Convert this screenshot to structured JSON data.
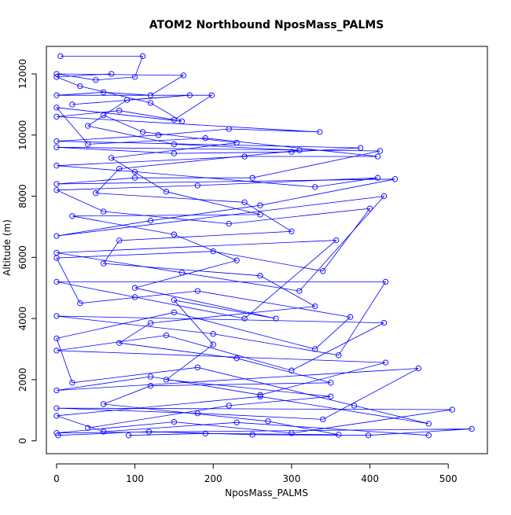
{
  "chart_data": {
    "type": "line",
    "title": "ATOM2 Northbound NposMass_PALMS",
    "xlabel": "NposMass_PALMS",
    "ylabel": "Altitude (m)",
    "xlim": [
      -13,
      550
    ],
    "ylim": [
      -420,
      12900
    ],
    "xticks": [
      0,
      100,
      200,
      300,
      400,
      500
    ],
    "yticks": [
      0,
      2000,
      4000,
      6000,
      8000,
      10000,
      12000
    ],
    "grid": false,
    "legend": "none",
    "markers": "open-circle",
    "colors": {
      "series": "#0000ff",
      "axes": "#000000",
      "background": "#ffffff"
    },
    "series": [
      {
        "values": [
          [
            2,
            180
          ],
          [
            118,
            300
          ],
          [
            250,
            200
          ],
          [
            398,
            180
          ],
          [
            530,
            390
          ],
          [
            0,
            260
          ],
          [
            150,
            620
          ],
          [
            300,
            250
          ],
          [
            505,
            1020
          ],
          [
            0,
            1070
          ],
          [
            180,
            900
          ],
          [
            340,
            700
          ],
          [
            462,
            2370
          ],
          [
            0,
            1650
          ],
          [
            120,
            2100
          ],
          [
            260,
            1500
          ],
          [
            420,
            2560
          ],
          [
            0,
            2950
          ],
          [
            140,
            3450
          ],
          [
            300,
            2300
          ],
          [
            418,
            3860
          ],
          [
            0,
            4080
          ],
          [
            200,
            3500
          ],
          [
            360,
            2800
          ],
          [
            420,
            5200
          ],
          [
            0,
            5200
          ],
          [
            100,
            4700
          ],
          [
            240,
            4000
          ],
          [
            357,
            6560
          ],
          [
            0,
            6150
          ],
          [
            160,
            5500
          ],
          [
            310,
            4900
          ],
          [
            418,
            8000
          ],
          [
            0,
            6700
          ],
          [
            120,
            7200
          ],
          [
            260,
            7700
          ],
          [
            432,
            8560
          ],
          [
            0,
            8400
          ],
          [
            100,
            8600
          ],
          [
            250,
            8600
          ],
          [
            413,
            9480
          ],
          [
            0,
            9600
          ],
          [
            150,
            9400
          ],
          [
            300,
            9450
          ],
          [
            388,
            9580
          ],
          [
            0,
            9800
          ],
          [
            130,
            10000
          ],
          [
            220,
            10200
          ],
          [
            336,
            10100
          ],
          [
            0,
            10600
          ],
          [
            80,
            10800
          ],
          [
            150,
            10500
          ],
          [
            198,
            11300
          ],
          [
            0,
            11300
          ],
          [
            60,
            11400
          ],
          [
            120,
            11300
          ],
          [
            162,
            11950
          ],
          [
            0,
            12000
          ],
          [
            50,
            11800
          ],
          [
            100,
            11900
          ],
          [
            110,
            12580
          ],
          [
            5,
            12580
          ]
        ]
      },
      {
        "values": [
          [
            475,
            180
          ],
          [
            230,
            600
          ],
          [
            60,
            300
          ],
          [
            0,
            820
          ],
          [
            260,
            1450
          ],
          [
            475,
            560
          ],
          [
            380,
            1150
          ],
          [
            180,
            2400
          ],
          [
            20,
            1900
          ],
          [
            0,
            3350
          ],
          [
            150,
            4200
          ],
          [
            330,
            3000
          ],
          [
            375,
            4050
          ],
          [
            180,
            4900
          ],
          [
            30,
            4500
          ],
          [
            0,
            5980
          ],
          [
            200,
            6200
          ],
          [
            340,
            5550
          ],
          [
            400,
            7600
          ],
          [
            220,
            7100
          ],
          [
            60,
            7500
          ],
          [
            0,
            8200
          ],
          [
            180,
            8350
          ],
          [
            410,
            8600
          ],
          [
            330,
            8300
          ],
          [
            100,
            8800
          ],
          [
            0,
            9000
          ],
          [
            240,
            9300
          ],
          [
            410,
            9300
          ],
          [
            190,
            9900
          ],
          [
            40,
            9700
          ],
          [
            0,
            10900
          ],
          [
            160,
            10450
          ],
          [
            120,
            11050
          ],
          [
            30,
            11600
          ],
          [
            0,
            11900
          ],
          [
            70,
            12000
          ]
        ]
      },
      {
        "values": [
          [
            92,
            180
          ],
          [
            190,
            240
          ],
          [
            360,
            200
          ],
          [
            270,
            640
          ],
          [
            60,
            1200
          ],
          [
            120,
            1800
          ],
          [
            350,
            1900
          ],
          [
            230,
            2700
          ],
          [
            80,
            3200
          ],
          [
            120,
            3850
          ],
          [
            330,
            4400
          ],
          [
            260,
            5400
          ],
          [
            60,
            5800
          ],
          [
            80,
            6550
          ],
          [
            300,
            6850
          ],
          [
            240,
            7800
          ],
          [
            50,
            8100
          ],
          [
            80,
            8900
          ],
          [
            310,
            9500
          ],
          [
            150,
            9700
          ],
          [
            40,
            10300
          ],
          [
            90,
            11150
          ],
          [
            170,
            11300
          ],
          [
            20,
            11000
          ]
        ]
      },
      {
        "values": [
          [
            40,
            420
          ],
          [
            220,
            1150
          ],
          [
            350,
            1450
          ],
          [
            140,
            2000
          ],
          [
            200,
            3150
          ],
          [
            150,
            4600
          ],
          [
            280,
            4000
          ],
          [
            100,
            5000
          ],
          [
            230,
            5900
          ],
          [
            150,
            6750
          ],
          [
            20,
            7350
          ],
          [
            260,
            7400
          ],
          [
            140,
            8150
          ],
          [
            70,
            9250
          ],
          [
            230,
            9750
          ],
          [
            110,
            10100
          ],
          [
            60,
            10650
          ]
        ]
      }
    ]
  }
}
